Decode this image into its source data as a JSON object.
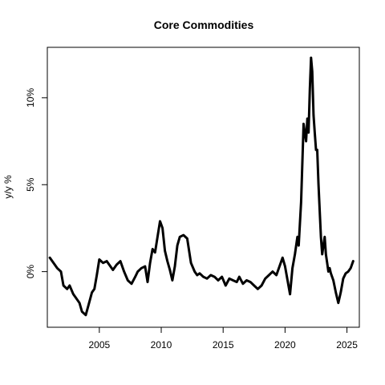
{
  "chart_data": {
    "type": "line",
    "title": "Core Commodities",
    "xlabel": "",
    "ylabel": "y/y %",
    "xlim": [
      2000.8,
      2026.0
    ],
    "ylim": [
      -3.2,
      12.9
    ],
    "grid": false,
    "legend": "none",
    "x_ticks": [
      {
        "value": 2005,
        "label": "2005"
      },
      {
        "value": 2010,
        "label": "2010"
      },
      {
        "value": 2015,
        "label": "2015"
      },
      {
        "value": 2020,
        "label": "2020"
      },
      {
        "value": 2025,
        "label": "2025"
      }
    ],
    "y_ticks": [
      {
        "value": 0,
        "label": "0%"
      },
      {
        "value": 5,
        "label": "5%"
      },
      {
        "value": 10,
        "label": "10%"
      }
    ],
    "series": [
      {
        "color": "#000000",
        "x": [
          2001.0,
          2001.3,
          2001.6,
          2001.9,
          2002.1,
          2002.4,
          2002.6,
          2002.9,
          2003.1,
          2003.4,
          2003.6,
          2003.9,
          2004.1,
          2004.4,
          2004.6,
          2004.8,
          2005.0,
          2005.3,
          2005.6,
          2005.9,
          2006.1,
          2006.4,
          2006.7,
          2007.0,
          2007.3,
          2007.6,
          2007.9,
          2008.1,
          2008.4,
          2008.7,
          2008.9,
          2009.1,
          2009.3,
          2009.5,
          2009.7,
          2009.9,
          2010.1,
          2010.3,
          2010.5,
          2010.7,
          2010.9,
          2011.1,
          2011.3,
          2011.5,
          2011.8,
          2012.1,
          2012.4,
          2012.7,
          2012.9,
          2013.1,
          2013.4,
          2013.7,
          2014.0,
          2014.3,
          2014.6,
          2014.9,
          2015.2,
          2015.5,
          2015.8,
          2016.1,
          2016.3,
          2016.6,
          2016.9,
          2017.2,
          2017.5,
          2017.8,
          2018.1,
          2018.4,
          2018.7,
          2019.0,
          2019.3,
          2019.5,
          2019.8,
          2020.0,
          2020.2,
          2020.4,
          2020.6,
          2020.8,
          2021.0,
          2021.1,
          2021.3,
          2021.5,
          2021.7,
          2021.8,
          2021.9,
          2022.0,
          2022.1,
          2022.2,
          2022.3,
          2022.4,
          2022.5,
          2022.6,
          2022.7,
          2022.8,
          2022.9,
          2023.0,
          2023.1,
          2023.2,
          2023.3,
          2023.4,
          2023.5,
          2023.6,
          2023.7,
          2023.9,
          2024.1,
          2024.3,
          2024.5,
          2024.7,
          2024.9,
          2025.1,
          2025.3,
          2025.5
        ],
        "y": [
          0.8,
          0.5,
          0.2,
          0.0,
          -0.8,
          -1.0,
          -0.8,
          -1.3,
          -1.5,
          -1.8,
          -2.3,
          -2.5,
          -2.0,
          -1.2,
          -1.0,
          -0.2,
          0.7,
          0.5,
          0.6,
          0.3,
          0.1,
          0.4,
          0.6,
          0.0,
          -0.5,
          -0.7,
          -0.3,
          0.0,
          0.2,
          0.3,
          -0.6,
          0.5,
          1.3,
          1.1,
          2.0,
          2.9,
          2.5,
          1.2,
          0.6,
          0.1,
          -0.5,
          0.3,
          1.5,
          2.0,
          2.1,
          1.9,
          0.5,
          0.0,
          -0.2,
          -0.1,
          -0.3,
          -0.4,
          -0.2,
          -0.3,
          -0.5,
          -0.3,
          -0.8,
          -0.4,
          -0.5,
          -0.6,
          -0.3,
          -0.7,
          -0.5,
          -0.6,
          -0.8,
          -1.0,
          -0.8,
          -0.4,
          -0.2,
          0.0,
          -0.2,
          0.2,
          0.8,
          0.3,
          -0.5,
          -1.3,
          0.2,
          1.0,
          2.0,
          1.5,
          4.0,
          8.5,
          7.5,
          8.8,
          8.0,
          10.5,
          12.3,
          11.5,
          9.0,
          8.0,
          7.0,
          7.0,
          5.0,
          3.5,
          2.0,
          1.0,
          1.5,
          2.0,
          1.0,
          0.5,
          0.0,
          0.2,
          -0.1,
          -0.5,
          -1.2,
          -1.8,
          -1.2,
          -0.4,
          -0.1,
          0.0,
          0.2,
          0.6
        ]
      }
    ]
  }
}
